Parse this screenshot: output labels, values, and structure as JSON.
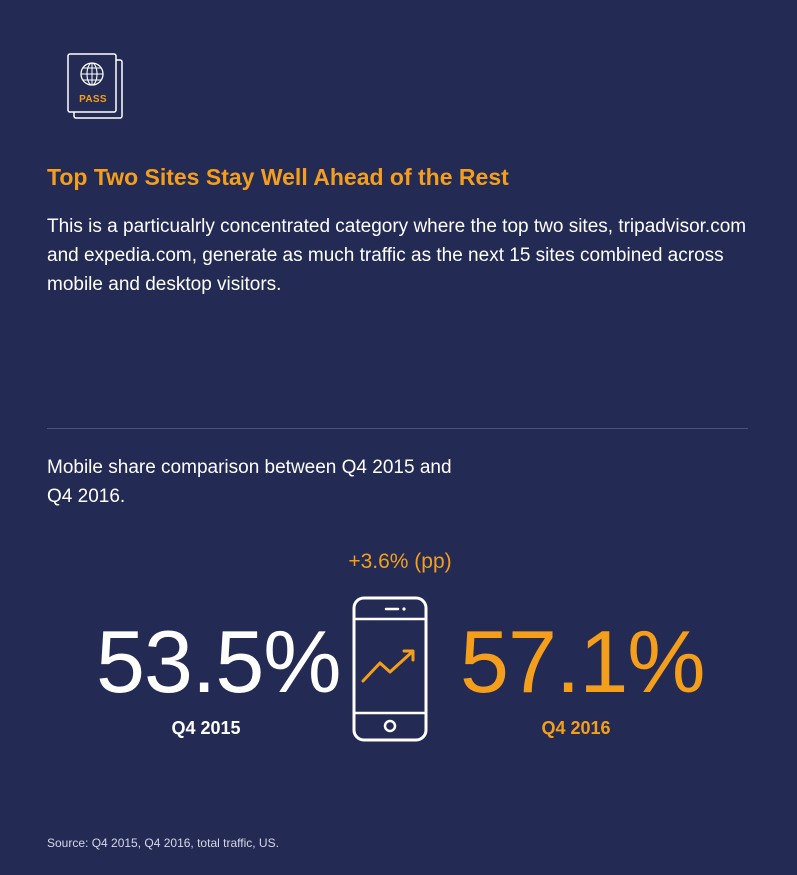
{
  "icon": {
    "name": "passport-icon",
    "label": "PASS"
  },
  "title": "Top Two Sites Stay Well Ahead of the Rest",
  "description": "This is a particualrly concentrated category where the top two sites, tripadvisor.com and expedia.com, generate as much traffic as the next 15 sites combined across mobile and desktop visitors.",
  "comparison": {
    "text": "Mobile share comparison between Q4 2015 and Q4 2016.",
    "change_label": "+3.6% (pp)",
    "before": {
      "value": "53.5%",
      "label": "Q4 2015"
    },
    "after": {
      "value": "57.1%",
      "label": "Q4 2016"
    },
    "icon": "phone-growth-icon"
  },
  "source": "Source: Q4 2015, Q4 2016, total traffic, US.",
  "colors": {
    "background": "#232b55",
    "accent": "#f59e1b",
    "text": "#ffffff"
  }
}
